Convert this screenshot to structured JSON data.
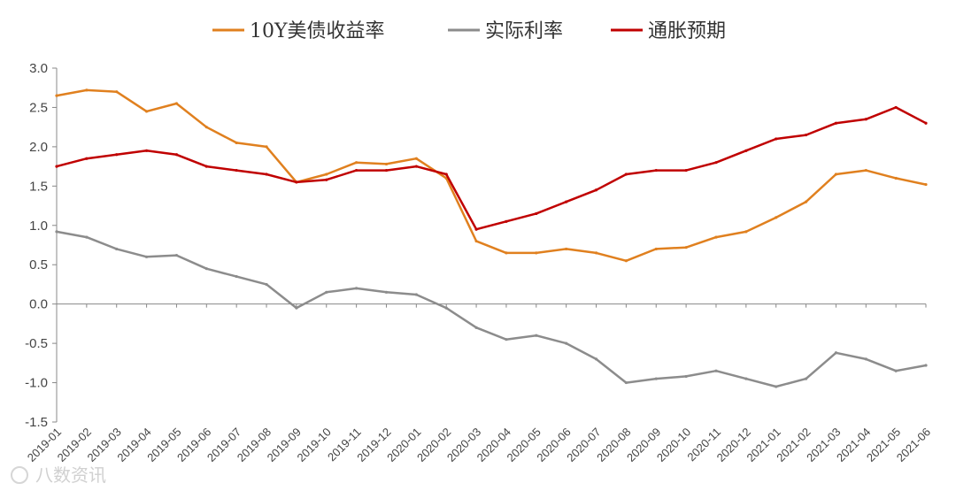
{
  "chart_data": {
    "type": "line",
    "title": "",
    "xlabel": "",
    "ylabel": "",
    "ylim": [
      -1.5,
      3.0
    ],
    "yticks": [
      "3.0",
      "2.5",
      "2.0",
      "1.5",
      "1.0",
      "0.5",
      "0.0",
      "-0.5",
      "-1.0",
      "-1.5"
    ],
    "legend_position": "top",
    "grid": false,
    "x": [
      "2019-01",
      "2019-02",
      "2019-03",
      "2019-04",
      "2019-05",
      "2019-06",
      "2019-07",
      "2019-08",
      "2019-09",
      "2019-10",
      "2019-11",
      "2019-12",
      "2020-01",
      "2020-02",
      "2020-03",
      "2020-04",
      "2020-05",
      "2020-06",
      "2020-07",
      "2020-08",
      "2020-09",
      "2020-10",
      "2020-11",
      "2020-12",
      "2021-01",
      "2021-02",
      "2021-03",
      "2021-04",
      "2021-05",
      "2021-06"
    ],
    "series": [
      {
        "name": "10Y美债收益率",
        "color": "#e0801f",
        "values": [
          2.65,
          2.72,
          2.7,
          2.45,
          2.55,
          2.25,
          2.05,
          2.0,
          1.55,
          1.65,
          1.8,
          1.78,
          1.85,
          1.6,
          0.8,
          0.65,
          0.65,
          0.7,
          0.65,
          0.55,
          0.7,
          0.72,
          0.85,
          0.92,
          1.1,
          1.3,
          1.65,
          1.7,
          1.6,
          1.52
        ]
      },
      {
        "name": "实际利率",
        "color": "#8c8c8c",
        "values": [
          0.92,
          0.85,
          0.7,
          0.6,
          0.62,
          0.45,
          0.35,
          0.25,
          -0.05,
          0.15,
          0.2,
          0.15,
          0.12,
          -0.05,
          -0.3,
          -0.45,
          -0.4,
          -0.5,
          -0.7,
          -1.0,
          -0.95,
          -0.92,
          -0.85,
          -0.95,
          -1.05,
          -0.95,
          -0.62,
          -0.7,
          -0.85,
          -0.78
        ]
      },
      {
        "name": "通胀预期",
        "color": "#c00000",
        "values": [
          1.75,
          1.85,
          1.9,
          1.95,
          1.9,
          1.75,
          1.7,
          1.65,
          1.55,
          1.58,
          1.7,
          1.7,
          1.75,
          1.65,
          0.95,
          1.05,
          1.15,
          1.3,
          1.45,
          1.65,
          1.7,
          1.7,
          1.8,
          1.95,
          2.1,
          2.15,
          2.3,
          2.35,
          2.5,
          2.3
        ]
      }
    ]
  },
  "watermark": "八数资讯"
}
